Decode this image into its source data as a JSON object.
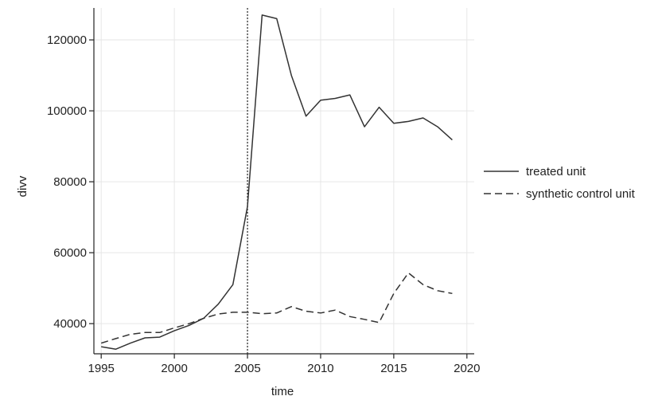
{
  "chart_data": {
    "type": "line",
    "xlabel": "time",
    "ylabel": "divv",
    "xlim": [
      1994.5,
      2020.5
    ],
    "ylim": [
      31500,
      129000
    ],
    "xticks": [
      1995,
      2000,
      2005,
      2010,
      2015,
      2020
    ],
    "yticks": [
      40000,
      60000,
      80000,
      100000,
      120000
    ],
    "grid": true,
    "legend_position": "right",
    "treatment_year": 2005,
    "x": [
      1995,
      1996,
      1997,
      1998,
      1999,
      2000,
      2001,
      2002,
      2003,
      2004,
      2005,
      2006,
      2007,
      2008,
      2009,
      2010,
      2011,
      2012,
      2013,
      2014,
      2015,
      2016,
      2017,
      2018,
      2019
    ],
    "series": [
      {
        "name": "treated unit",
        "style": "solid",
        "color": "#333333",
        "values": [
          33500,
          32800,
          34500,
          36000,
          36200,
          38000,
          39500,
          41500,
          45500,
          51000,
          73000,
          127000,
          126000,
          110000,
          98500,
          103000,
          103500,
          104500,
          95500,
          101000,
          96500,
          97000,
          98000,
          95500,
          91800
        ]
      },
      {
        "name": "synthetic control unit",
        "style": "dashed",
        "color": "#333333",
        "values": [
          34500,
          35800,
          37000,
          37500,
          37500,
          38800,
          40000,
          41500,
          42700,
          43200,
          43200,
          42800,
          43000,
          44800,
          43500,
          43000,
          43800,
          42000,
          41200,
          40300,
          48500,
          54300,
          51000,
          49300,
          48500
        ]
      }
    ]
  }
}
